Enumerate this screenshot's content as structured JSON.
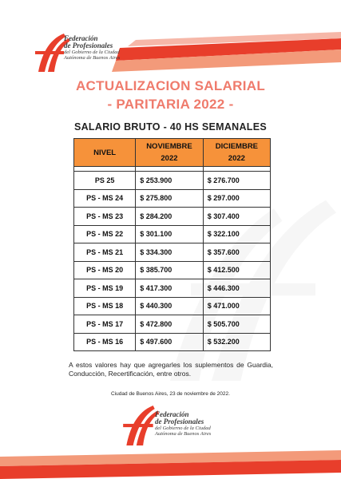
{
  "logo": {
    "line1": "Federación",
    "line2": "de Profesionales",
    "line3": "del Gobierno de la Ciudad",
    "line4": "Autónoma de Buenos Aires"
  },
  "title_line1": "ACTUALIZACION SALARIAL",
  "title_line2": "- PARITARIA 2022 -",
  "subtitle": "SALARIO BRUTO - 40 HS SEMANALES",
  "table": {
    "headers": {
      "nivel": "NIVEL",
      "noviembre_line1": "NOVIEMBRE",
      "noviembre_line2": "2022",
      "diciembre_line1": "DICIEMBRE",
      "diciembre_line2": "2022"
    },
    "rows": [
      {
        "nivel": "PS 25",
        "noviembre": "$ 253.900",
        "diciembre": "$ 276.700"
      },
      {
        "nivel": "PS - MS 24",
        "noviembre": "$ 275.800",
        "diciembre": "$ 297.000"
      },
      {
        "nivel": "PS - MS 23",
        "noviembre": "$ 284.200",
        "diciembre": "$ 307.400"
      },
      {
        "nivel": "PS - MS 22",
        "noviembre": "$ 301.100",
        "diciembre": "$ 322.100"
      },
      {
        "nivel": "PS - MS 21",
        "noviembre": "$ 334.300",
        "diciembre": "$ 357.600"
      },
      {
        "nivel": "PS - MS 20",
        "noviembre": "$ 385.700",
        "diciembre": "$ 412.500"
      },
      {
        "nivel": "PS - MS 19",
        "noviembre": "$ 417.300",
        "diciembre": "$ 446.300"
      },
      {
        "nivel": "PS - MS 18",
        "noviembre": "$ 440.300",
        "diciembre": "$ 471.000"
      },
      {
        "nivel": "PS - MS 17",
        "noviembre": "$ 472.800",
        "diciembre": "$ 505.700"
      },
      {
        "nivel": "PS - MS 16",
        "noviembre": "$ 497.600",
        "diciembre": "$ 532.200"
      }
    ]
  },
  "note": "A estos valores hay que agregarles los suplementos de Guardia, Conducción, Recertificación, entre otros.",
  "place_date": "Ciudad de Buenos Aires, 23 de noviembre de 2022.",
  "colors": {
    "accent": "#ef7b6c",
    "header_orange": "#f6923a",
    "band_red": "#e83e2b"
  }
}
